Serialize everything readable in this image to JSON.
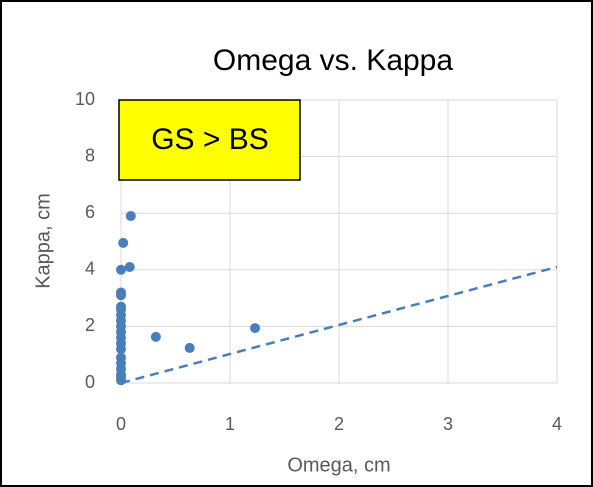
{
  "chart_data": {
    "type": "scatter",
    "title": "Omega vs. Kappa",
    "x_label": "Omega, cm",
    "y_label": "Kappa, cm",
    "annotations": [
      "GS > BS"
    ],
    "color": "#4a7ebb",
    "x": [
      0,
      0,
      0,
      0,
      0,
      0,
      0,
      0,
      0,
      0,
      0,
      0,
      0,
      0,
      0,
      0,
      0,
      0,
      0.02,
      0.09,
      0.08,
      0.32,
      0.63,
      1.23
    ],
    "values": [
      0.1,
      0.2,
      0.3,
      0.5,
      0.7,
      0.9,
      1.2,
      1.4,
      1.6,
      1.8,
      2.0,
      2.2,
      2.4,
      2.6,
      2.7,
      3.1,
      3.2,
      4.0,
      4.95,
      5.9,
      4.1,
      1.63,
      1.24,
      1.94
    ],
    "reference_line": {
      "x": [
        0,
        4
      ],
      "values": [
        0,
        4.1
      ],
      "color": "#4a7ebb",
      "dashed": true
    },
    "xlim": [
      0,
      4
    ],
    "ylim": [
      0,
      10
    ],
    "xticks": [
      0,
      1,
      2,
      3,
      4
    ],
    "yticks": [
      0,
      2,
      4,
      6,
      8,
      10
    ],
    "grid": true
  }
}
